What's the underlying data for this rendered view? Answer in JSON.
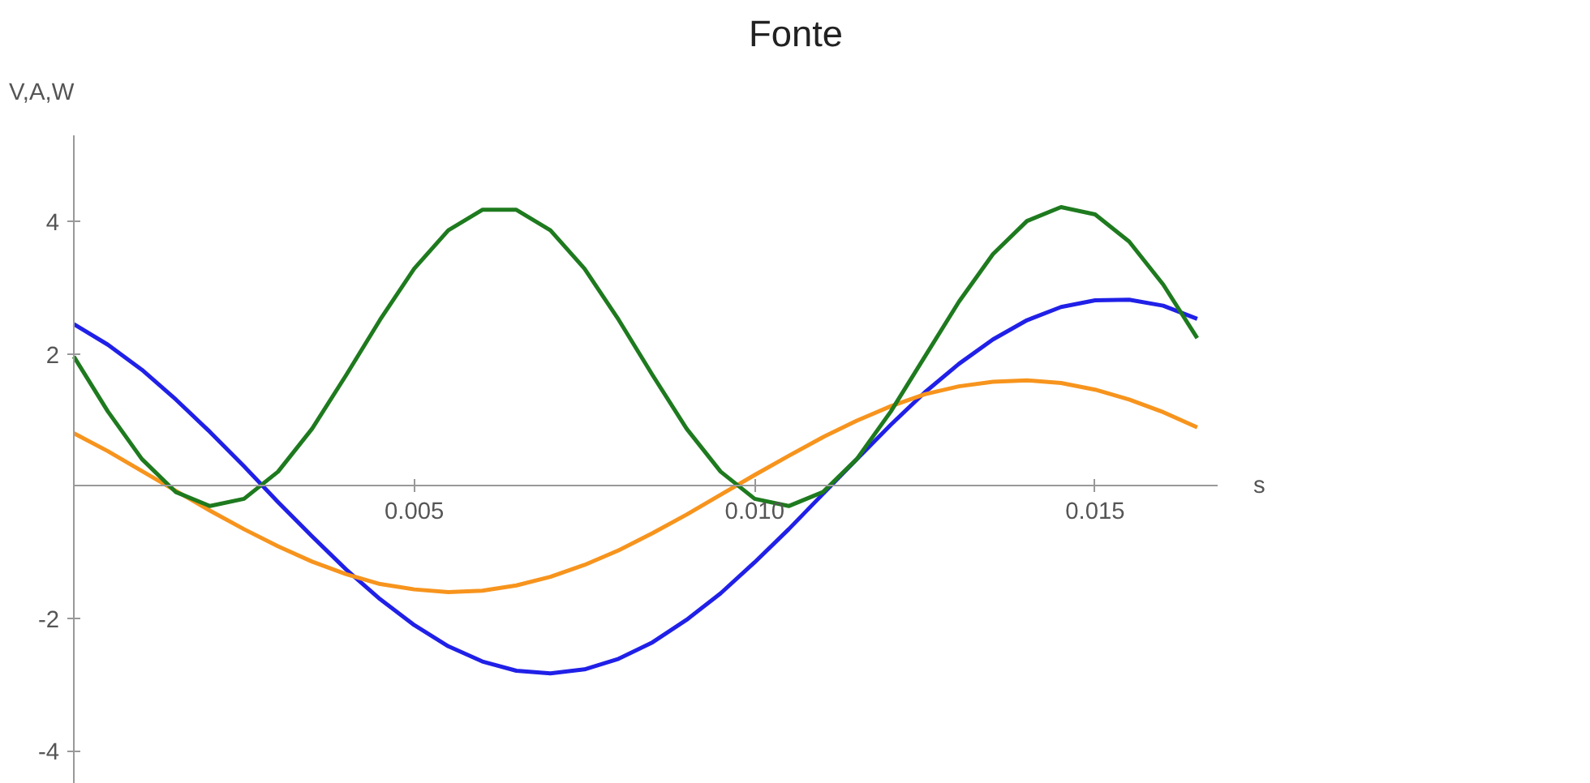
{
  "chart_data": {
    "type": "line",
    "title": "Fonte",
    "xlabel": "s",
    "ylabel": "V,A,W",
    "x": [
      0,
      0.0005,
      0.001,
      0.0015,
      0.002,
      0.0025,
      0.003,
      0.0035,
      0.004,
      0.0045,
      0.005,
      0.0055,
      0.006,
      0.0065,
      0.007,
      0.0075,
      0.008,
      0.0085,
      0.009,
      0.0095,
      0.01,
      0.0105,
      0.011,
      0.0115,
      0.012,
      0.0125,
      0.013,
      0.0135,
      0.014,
      0.0145,
      0.015,
      0.0155,
      0.016,
      0.0165
    ],
    "series": [
      {
        "color": "#2020e8",
        "values": [
          2.45,
          2.14,
          1.76,
          1.31,
          0.82,
          0.3,
          -0.24,
          -0.76,
          -1.26,
          -1.71,
          -2.1,
          -2.42,
          -2.65,
          -2.79,
          -2.83,
          -2.77,
          -2.61,
          -2.36,
          -2.02,
          -1.62,
          -1.15,
          -0.65,
          -0.12,
          0.41,
          0.93,
          1.42,
          1.85,
          2.22,
          2.51,
          2.71,
          2.81,
          2.82,
          2.73,
          2.53
        ]
      },
      {
        "color": "#f7941d",
        "values": [
          0.8,
          0.53,
          0.23,
          -0.07,
          -0.37,
          -0.65,
          -0.91,
          -1.14,
          -1.33,
          -1.48,
          -1.56,
          -1.6,
          -1.58,
          -1.5,
          -1.37,
          -1.19,
          -0.97,
          -0.71,
          -0.43,
          -0.13,
          0.17,
          0.46,
          0.74,
          0.99,
          1.21,
          1.39,
          1.51,
          1.58,
          1.6,
          1.56,
          1.46,
          1.31,
          1.12,
          0.89
        ]
      },
      {
        "color": "#1e7a1e",
        "values": [
          1.96,
          1.13,
          0.41,
          -0.09,
          -0.3,
          -0.19,
          0.22,
          0.87,
          1.68,
          2.52,
          3.29,
          3.87,
          4.18,
          4.18,
          3.87,
          3.29,
          2.52,
          1.68,
          0.87,
          0.22,
          -0.19,
          -0.3,
          -0.09,
          0.41,
          1.13,
          1.96,
          2.79,
          3.51,
          4.01,
          4.22,
          4.11,
          3.7,
          3.05,
          2.24
        ]
      }
    ],
    "xlim": [
      0,
      0.0168
    ],
    "ylim": [
      -4.5,
      5.3
    ],
    "xticks": [
      0.005,
      {
        "value": 0.01,
        "label": "0.010"
      },
      0.015
    ],
    "yticks": [
      -4,
      -2,
      2,
      4
    ],
    "grid": false,
    "marker": "none",
    "line_style": "solid"
  }
}
